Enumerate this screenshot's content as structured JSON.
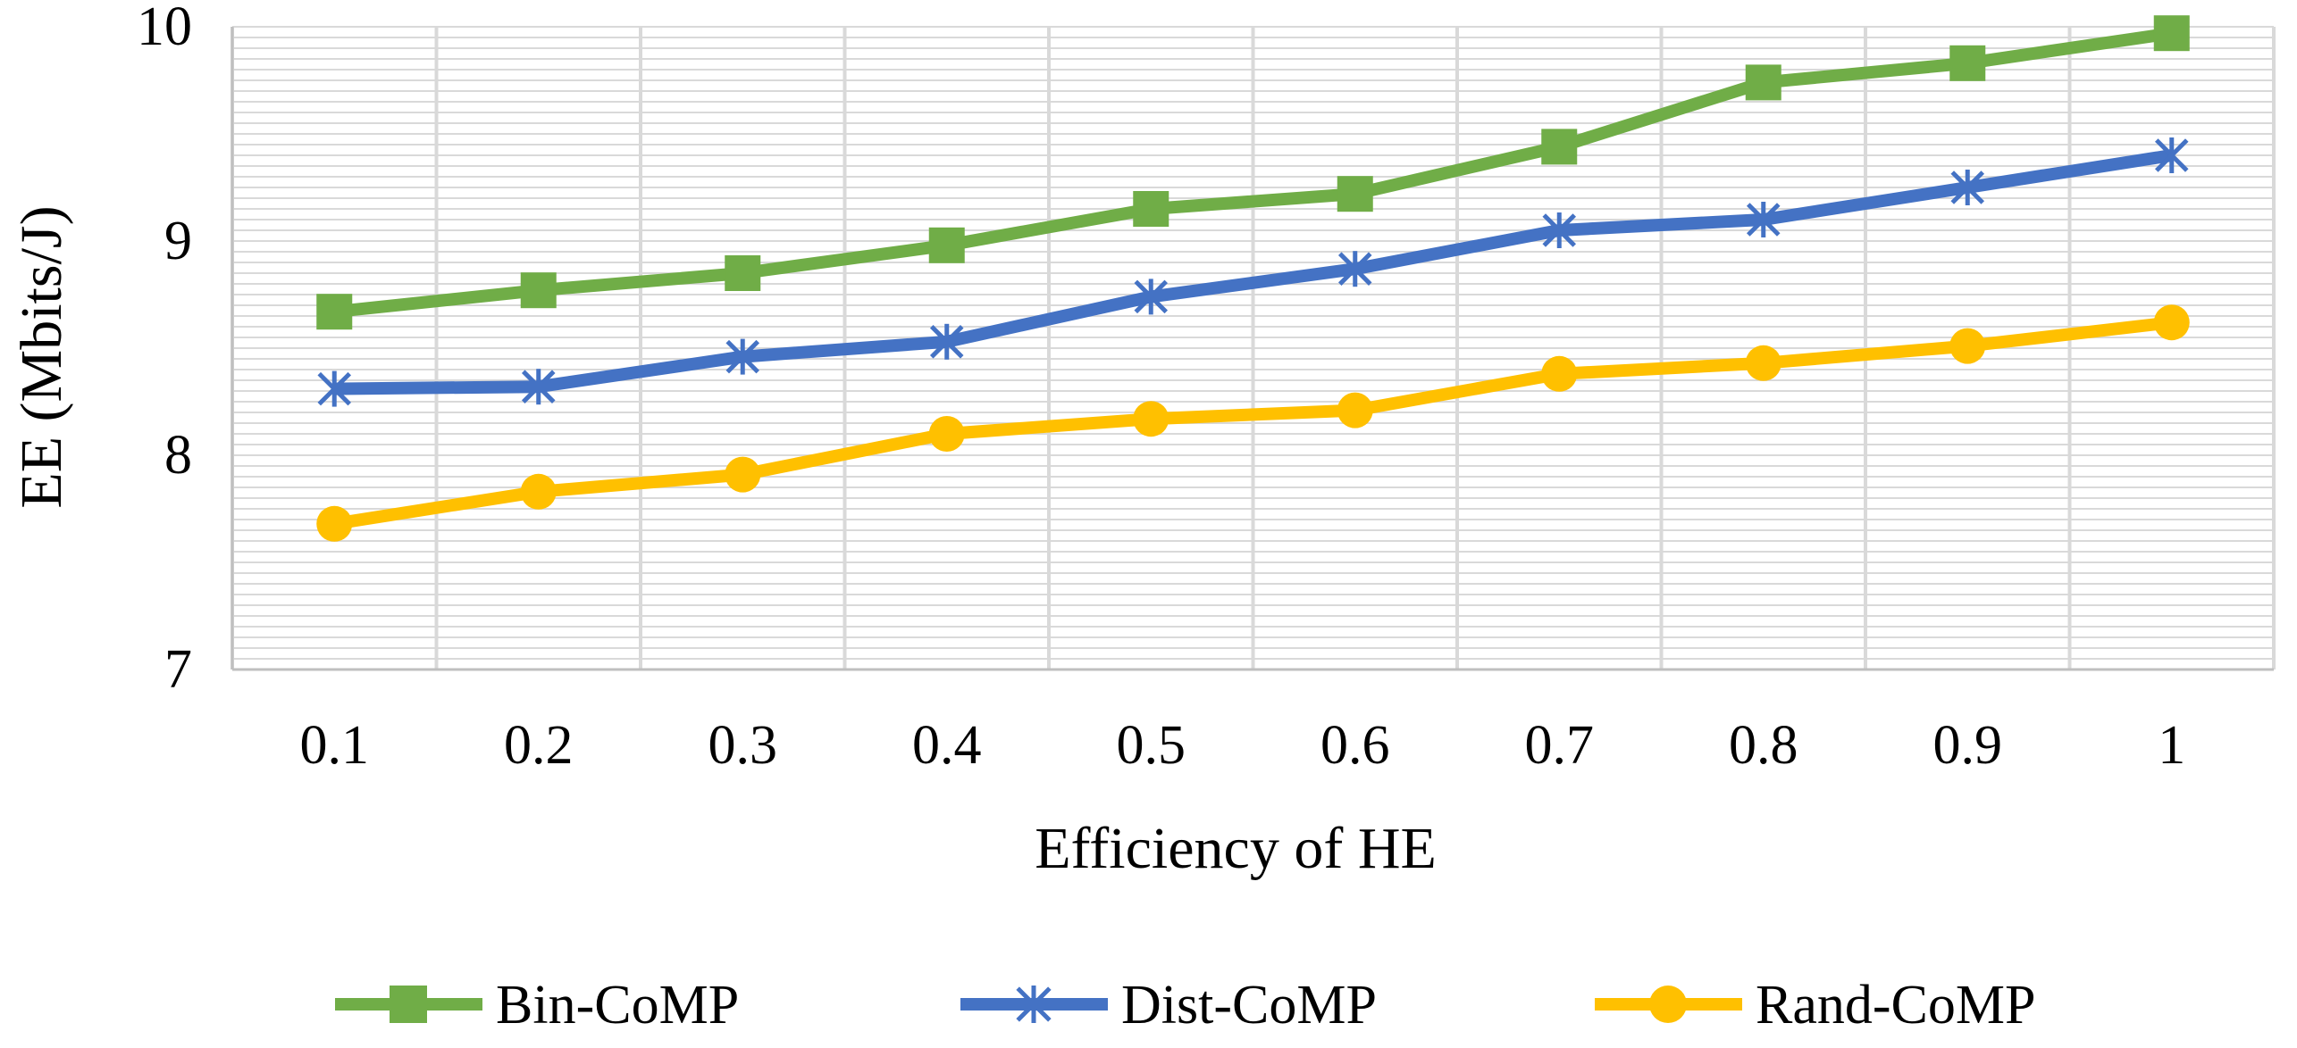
{
  "chart_data": {
    "type": "line",
    "title": "",
    "xlabel": "Efficiency of HE",
    "ylabel": "EE (Mbits/J)",
    "x": [
      "0.1",
      "0.2",
      "0.3",
      "0.4",
      "0.5",
      "0.6",
      "0.7",
      "0.8",
      "0.9",
      "1"
    ],
    "ylim": [
      7,
      10
    ],
    "yticks": [
      "7",
      "8",
      "9",
      "10"
    ],
    "grid": true,
    "legend_position": "bottom",
    "series": [
      {
        "name": "Bin-CoMP",
        "color": "#70ad47",
        "marker": "square",
        "values": [
          8.67,
          8.77,
          8.85,
          8.98,
          9.15,
          9.22,
          9.44,
          9.74,
          9.83,
          9.97
        ]
      },
      {
        "name": "Dist-CoMP",
        "color": "#4472c4",
        "marker": "asterisk",
        "values": [
          8.31,
          8.32,
          8.46,
          8.53,
          8.74,
          8.87,
          9.05,
          9.1,
          9.25,
          9.4
        ]
      },
      {
        "name": "Rand-CoMP",
        "color": "#ffc000",
        "marker": "circle",
        "values": [
          7.68,
          7.83,
          7.91,
          8.1,
          8.17,
          8.21,
          8.38,
          8.43,
          8.51,
          8.62
        ]
      }
    ]
  }
}
